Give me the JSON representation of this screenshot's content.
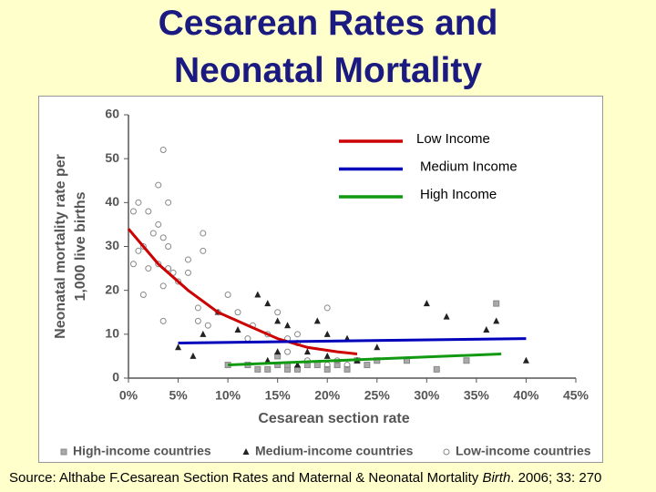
{
  "chart_data": {
    "type": "scatter",
    "title": "Cesarean Rates and Neonatal Mortality",
    "xlabel": "Cesarean section rate",
    "ylabel_lines": [
      "Neonatal mortality rate per",
      "1,000 live births"
    ],
    "xlim": [
      0,
      45
    ],
    "ylim": [
      0,
      60
    ],
    "xticks": [
      {
        "value": 0,
        "label": "0%"
      },
      {
        "value": 5,
        "label": "5%"
      },
      {
        "value": 10,
        "label": "10%"
      },
      {
        "value": 15,
        "label": "15%"
      },
      {
        "value": 20,
        "label": "20%"
      },
      {
        "value": 25,
        "label": "25%"
      },
      {
        "value": 30,
        "label": "30%"
      },
      {
        "value": 35,
        "label": "35%"
      },
      {
        "value": 40,
        "label": "40%"
      },
      {
        "value": 45,
        "label": "45%"
      }
    ],
    "yticks": [
      0,
      10,
      20,
      30,
      40,
      50,
      60
    ],
    "series": [
      {
        "name": "High-income countries",
        "marker": "square",
        "color": "#888888",
        "x": [
          10,
          12,
          13,
          14,
          15,
          16,
          16,
          17,
          19,
          20,
          21,
          22,
          24,
          25,
          28,
          31,
          34,
          37,
          15,
          18,
          23
        ],
        "y": [
          3,
          3,
          2,
          2,
          3,
          2,
          3,
          2,
          3,
          2,
          3,
          2,
          3,
          4,
          4,
          2,
          4,
          17,
          5,
          3,
          4
        ]
      },
      {
        "name": "Medium-income countries",
        "marker": "triangle",
        "color": "#222222",
        "x": [
          5,
          6.5,
          7.5,
          9,
          11,
          13,
          14,
          15,
          15,
          16,
          18,
          19,
          20,
          22,
          23,
          25,
          30,
          32,
          36,
          37,
          40,
          14,
          17,
          20
        ],
        "y": [
          7,
          5,
          10,
          15,
          11,
          19,
          17,
          13,
          6,
          12,
          6,
          13,
          10,
          9,
          4,
          7,
          17,
          14,
          11,
          13,
          4,
          4,
          3,
          5
        ]
      },
      {
        "name": "Low-income countries",
        "marker": "circle",
        "color": "#888888",
        "x": [
          0.5,
          1,
          1,
          1.5,
          2,
          2,
          0.5,
          1.5,
          2.5,
          3,
          3,
          3,
          3.5,
          3.5,
          3.5,
          3.5,
          4,
          4,
          4,
          4.5,
          5,
          6,
          6,
          7,
          7.5,
          7.5,
          8,
          7,
          9,
          10,
          11,
          12,
          12.5,
          14,
          15,
          16,
          16,
          17,
          17,
          20,
          20,
          21,
          22,
          18
        ],
        "y": [
          38,
          40,
          29,
          30,
          38,
          25,
          26,
          19,
          33,
          44,
          35,
          26,
          32,
          52,
          21,
          13,
          40,
          30,
          25,
          24,
          22,
          27,
          24,
          16,
          33,
          29,
          12,
          13,
          15,
          19,
          15,
          9,
          12,
          10,
          15,
          9,
          6,
          8,
          10,
          16,
          3,
          4,
          3,
          4
        ]
      }
    ],
    "trends": [
      {
        "name": "Low Income",
        "color": "#cc0000",
        "x": [
          0,
          3,
          6,
          9,
          12,
          15,
          18,
          21,
          23
        ],
        "y": [
          34,
          26,
          20,
          15,
          12,
          9,
          7,
          6,
          5.5
        ]
      },
      {
        "name": "Medium Income",
        "color": "#0000bb",
        "x": [
          5,
          40
        ],
        "y": [
          8,
          9
        ]
      },
      {
        "name": "High Income",
        "color": "#119911",
        "x": [
          10,
          37.5
        ],
        "y": [
          3,
          5.5
        ]
      }
    ],
    "source": {
      "text": "Source: Althabe F.Cesarean Section Rates and Maternal & Neonatal Mortality ",
      "journal": "Birth",
      "citation": ". 2006; 33: 270"
    }
  }
}
